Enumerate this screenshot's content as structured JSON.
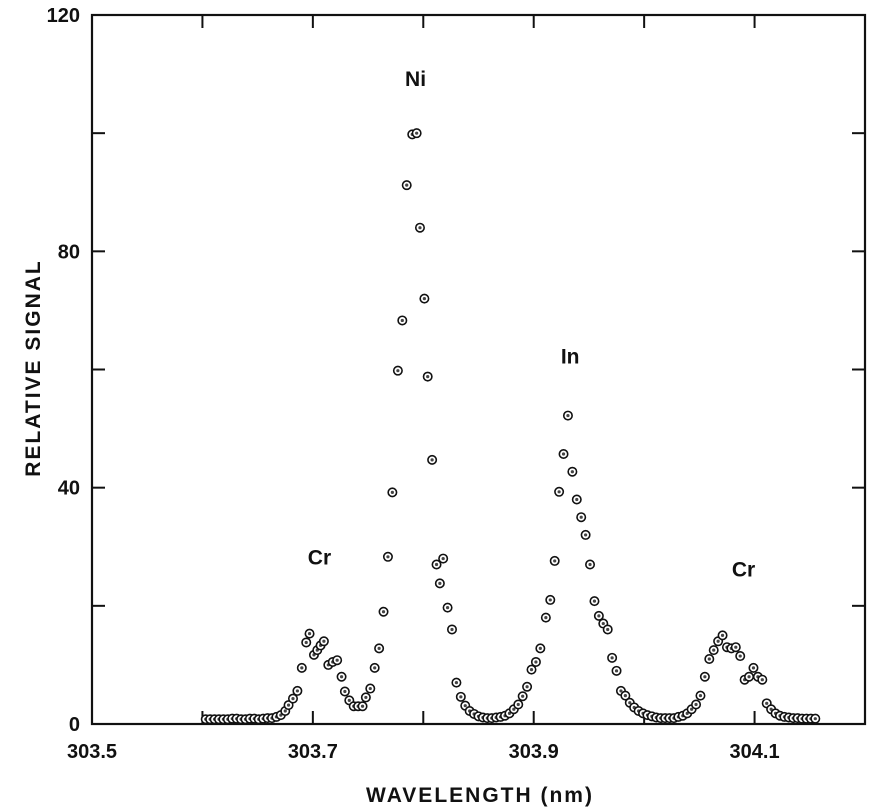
{
  "chart_data": {
    "type": "scatter",
    "xlabel": "WAVELENGTH (nm)",
    "ylabel": "RELATIVE SIGNAL",
    "xlim": [
      303.5,
      304.2
    ],
    "ylim": [
      0,
      120
    ],
    "x_ticks": [
      303.5,
      303.6,
      303.7,
      303.8,
      303.9,
      304.0,
      304.1,
      304.2
    ],
    "x_tick_labels": [
      {
        "value": 303.5,
        "label": "303.5"
      },
      {
        "value": 303.7,
        "label": "303.7"
      },
      {
        "value": 303.9,
        "label": "303.9"
      },
      {
        "value": 304.1,
        "label": "304.1"
      }
    ],
    "y_ticks": [
      0,
      20,
      40,
      60,
      80,
      100,
      120
    ],
    "y_tick_labels": [
      {
        "value": 0,
        "label": "0"
      },
      {
        "value": 40,
        "label": "40"
      },
      {
        "value": 80,
        "label": "80"
      },
      {
        "value": 120,
        "label": "120"
      }
    ],
    "annotations": [
      {
        "text": "Ni",
        "x": 303.793,
        "y": 108
      },
      {
        "text": "In",
        "x": 303.933,
        "y": 61
      },
      {
        "text": "Cr",
        "x": 303.706,
        "y": 27
      },
      {
        "text": "Cr",
        "x": 304.09,
        "y": 25
      }
    ],
    "grid": false,
    "series": [
      {
        "points": [
          [
            303.603,
            0.8
          ],
          [
            303.607,
            0.8
          ],
          [
            303.611,
            0.8
          ],
          [
            303.615,
            0.8
          ],
          [
            303.619,
            0.8
          ],
          [
            303.623,
            0.8
          ],
          [
            303.627,
            0.9
          ],
          [
            303.631,
            0.9
          ],
          [
            303.635,
            0.8
          ],
          [
            303.639,
            0.8
          ],
          [
            303.643,
            0.9
          ],
          [
            303.647,
            0.9
          ],
          [
            303.651,
            0.8
          ],
          [
            303.655,
            0.9
          ],
          [
            303.659,
            1.0
          ],
          [
            303.663,
            1.0
          ],
          [
            303.667,
            1.2
          ],
          [
            303.671,
            1.5
          ],
          [
            303.675,
            2.2
          ],
          [
            303.678,
            3.2
          ],
          [
            303.682,
            4.3
          ],
          [
            303.686,
            5.6
          ],
          [
            303.69,
            9.5
          ],
          [
            303.694,
            13.8
          ],
          [
            303.697,
            15.3
          ],
          [
            303.701,
            11.7
          ],
          [
            303.704,
            12.5
          ],
          [
            303.707,
            13.3
          ],
          [
            303.71,
            14.0
          ],
          [
            303.714,
            10.0
          ],
          [
            303.718,
            10.5
          ],
          [
            303.722,
            10.8
          ],
          [
            303.726,
            8.0
          ],
          [
            303.729,
            5.5
          ],
          [
            303.733,
            4.0
          ],
          [
            303.737,
            3.0
          ],
          [
            303.741,
            3.0
          ],
          [
            303.745,
            3.0
          ],
          [
            303.748,
            4.5
          ],
          [
            303.752,
            6.0
          ],
          [
            303.756,
            9.5
          ],
          [
            303.76,
            12.8
          ],
          [
            303.764,
            19.0
          ],
          [
            303.768,
            28.3
          ],
          [
            303.772,
            39.2
          ],
          [
            303.777,
            59.8
          ],
          [
            303.781,
            68.3
          ],
          [
            303.785,
            91.2
          ],
          [
            303.79,
            99.8
          ],
          [
            303.794,
            100.0
          ],
          [
            303.797,
            84.0
          ],
          [
            303.801,
            72.0
          ],
          [
            303.804,
            58.8
          ],
          [
            303.808,
            44.7
          ],
          [
            303.812,
            27.0
          ],
          [
            303.815,
            23.8
          ],
          [
            303.818,
            28.0
          ],
          [
            303.822,
            19.7
          ],
          [
            303.826,
            16.0
          ],
          [
            303.83,
            7.0
          ],
          [
            303.834,
            4.6
          ],
          [
            303.838,
            3.1
          ],
          [
            303.842,
            2.2
          ],
          [
            303.846,
            1.7
          ],
          [
            303.85,
            1.3
          ],
          [
            303.854,
            1.1
          ],
          [
            303.858,
            1.0
          ],
          [
            303.862,
            1.0
          ],
          [
            303.866,
            1.1
          ],
          [
            303.87,
            1.2
          ],
          [
            303.874,
            1.4
          ],
          [
            303.878,
            1.8
          ],
          [
            303.882,
            2.5
          ],
          [
            303.886,
            3.3
          ],
          [
            303.89,
            4.7
          ],
          [
            303.894,
            6.3
          ],
          [
            303.898,
            9.2
          ],
          [
            303.902,
            10.5
          ],
          [
            303.906,
            12.8
          ],
          [
            303.911,
            18.0
          ],
          [
            303.915,
            21.0
          ],
          [
            303.919,
            27.6
          ],
          [
            303.923,
            39.3
          ],
          [
            303.927,
            45.7
          ],
          [
            303.931,
            52.2
          ],
          [
            303.935,
            42.7
          ],
          [
            303.939,
            38.0
          ],
          [
            303.943,
            35.0
          ],
          [
            303.947,
            32.0
          ],
          [
            303.951,
            27.0
          ],
          [
            303.955,
            20.8
          ],
          [
            303.959,
            18.3
          ],
          [
            303.963,
            17.0
          ],
          [
            303.967,
            16.0
          ],
          [
            303.971,
            11.2
          ],
          [
            303.975,
            9.0
          ],
          [
            303.979,
            5.6
          ],
          [
            303.983,
            4.8
          ],
          [
            303.987,
            3.6
          ],
          [
            303.991,
            2.8
          ],
          [
            303.995,
            2.2
          ],
          [
            303.999,
            1.8
          ],
          [
            304.003,
            1.5
          ],
          [
            304.007,
            1.3
          ],
          [
            304.011,
            1.1
          ],
          [
            304.015,
            1.0
          ],
          [
            304.019,
            1.0
          ],
          [
            304.023,
            1.0
          ],
          [
            304.027,
            1.0
          ],
          [
            304.031,
            1.2
          ],
          [
            304.035,
            1.4
          ],
          [
            304.039,
            1.8
          ],
          [
            304.043,
            2.5
          ],
          [
            304.047,
            3.3
          ],
          [
            304.051,
            4.8
          ],
          [
            304.055,
            8.0
          ],
          [
            304.059,
            11.0
          ],
          [
            304.063,
            12.5
          ],
          [
            304.067,
            14.0
          ],
          [
            304.071,
            15.0
          ],
          [
            304.075,
            13.0
          ],
          [
            304.079,
            12.8
          ],
          [
            304.083,
            13.0
          ],
          [
            304.087,
            11.5
          ],
          [
            304.091,
            7.5
          ],
          [
            304.095,
            8.0
          ],
          [
            304.099,
            9.5
          ],
          [
            304.103,
            8.0
          ],
          [
            304.107,
            7.5
          ],
          [
            304.111,
            3.5
          ],
          [
            304.115,
            2.5
          ],
          [
            304.119,
            1.8
          ],
          [
            304.123,
            1.4
          ],
          [
            304.127,
            1.2
          ],
          [
            304.131,
            1.1
          ],
          [
            304.135,
            1.0
          ],
          [
            304.139,
            1.0
          ],
          [
            304.143,
            0.9
          ],
          [
            304.147,
            0.9
          ],
          [
            304.151,
            0.9
          ],
          [
            304.155,
            0.9
          ]
        ]
      }
    ]
  }
}
